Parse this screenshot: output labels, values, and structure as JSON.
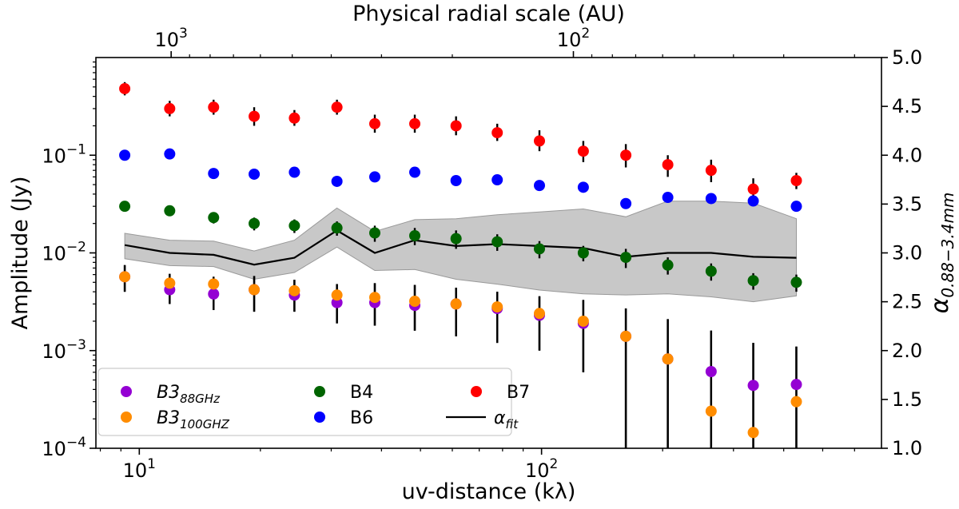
{
  "chart_data": {
    "type": "scatter",
    "title": "",
    "xlabel": "uv-distance (kλ)",
    "ylabel": "Amplitude (Jy)",
    "y2label": "α0.88−3.4mm",
    "x2label": "Physical radial scale (AU)",
    "xscale": "log",
    "yscale": "log",
    "xlim": [
      7.8,
      700
    ],
    "ylim": [
      0.0001,
      1.0
    ],
    "y2lim": [
      1.0,
      5.0
    ],
    "x_ticks": [
      {
        "v": 10,
        "b": "10",
        "e": "1"
      },
      {
        "v": 100,
        "b": "10",
        "e": "2"
      }
    ],
    "y_ticks": [
      {
        "v": 0.0001,
        "b": "10",
        "e": "−4"
      },
      {
        "v": 0.001,
        "b": "10",
        "e": "−3"
      },
      {
        "v": 0.01,
        "b": "10",
        "e": "−2"
      },
      {
        "v": 0.1,
        "b": "10",
        "e": "−1"
      }
    ],
    "y2_ticks": [
      "1.0",
      "1.5",
      "2.0",
      "2.5",
      "3.0",
      "3.5",
      "4.0",
      "4.5",
      "5.0"
    ],
    "x2_ticks": [
      {
        "au": 1000,
        "b": "10",
        "e": "3"
      },
      {
        "au": 100,
        "b": "10",
        "e": "2"
      }
    ],
    "x2_au_conversion": 12000,
    "x": [
      9.2,
      11.9,
      15.3,
      19.3,
      24.3,
      31.0,
      38.5,
      48.4,
      61.3,
      77.6,
      98.8,
      127,
      162,
      206,
      264,
      336,
      430
    ],
    "series": [
      {
        "name": "B7",
        "label": "B7",
        "color": "#ff0000",
        "values": [
          0.48,
          0.3,
          0.31,
          0.25,
          0.24,
          0.31,
          0.21,
          0.21,
          0.2,
          0.17,
          0.14,
          0.11,
          0.1,
          0.08,
          0.07,
          0.045,
          0.055
        ],
        "err_lo": [
          0.41,
          0.25,
          0.26,
          0.2,
          0.2,
          0.26,
          0.17,
          0.17,
          0.16,
          0.14,
          0.11,
          0.085,
          0.075,
          0.06,
          0.053,
          0.035,
          0.045
        ],
        "err_hi": [
          0.56,
          0.36,
          0.37,
          0.31,
          0.29,
          0.37,
          0.26,
          0.26,
          0.25,
          0.21,
          0.18,
          0.14,
          0.13,
          0.1,
          0.09,
          0.058,
          0.066
        ]
      },
      {
        "name": "B6",
        "label": "B6",
        "color": "#0000ff",
        "values": [
          0.1,
          0.103,
          0.065,
          0.064,
          0.067,
          0.054,
          0.06,
          0.067,
          0.055,
          0.056,
          0.049,
          0.047,
          0.032,
          0.037,
          0.036,
          0.034,
          0.03
        ],
        "err_lo": [
          0.1,
          0.103,
          0.059,
          0.058,
          0.061,
          0.049,
          0.054,
          0.061,
          0.05,
          0.051,
          0.045,
          0.043,
          0.029,
          0.034,
          0.033,
          0.034,
          0.03
        ],
        "err_hi": [
          0.1,
          0.103,
          0.071,
          0.07,
          0.073,
          0.059,
          0.066,
          0.073,
          0.06,
          0.061,
          0.054,
          0.052,
          0.035,
          0.04,
          0.039,
          0.034,
          0.03
        ]
      },
      {
        "name": "B4",
        "label": "B4",
        "color": "#006400",
        "values": [
          0.03,
          0.027,
          0.023,
          0.02,
          0.019,
          0.018,
          0.016,
          0.015,
          0.014,
          0.013,
          0.011,
          0.01,
          0.009,
          0.0075,
          0.0065,
          0.0052,
          0.005
        ],
        "err_lo": [
          0.028,
          0.024,
          0.02,
          0.017,
          0.016,
          0.015,
          0.013,
          0.012,
          0.011,
          0.0105,
          0.0088,
          0.0082,
          0.007,
          0.006,
          0.0052,
          0.0042,
          0.004
        ],
        "err_hi": [
          0.032,
          0.03,
          0.026,
          0.023,
          0.022,
          0.021,
          0.019,
          0.018,
          0.017,
          0.0155,
          0.0132,
          0.0118,
          0.011,
          0.009,
          0.0078,
          0.0062,
          0.006
        ]
      },
      {
        "name": "B3_88GHz",
        "label": "B3",
        "sub": "88GHz",
        "italic": true,
        "color": "#9400d3",
        "values": [
          0.0057,
          0.0042,
          0.0038,
          0.0042,
          0.0037,
          0.0031,
          0.0031,
          0.0029,
          0.003,
          0.0027,
          0.0023,
          0.0019,
          0.0014,
          0.00082,
          0.00061,
          0.00044,
          0.00045
        ],
        "err_lo": [
          0.004,
          0.003,
          0.0026,
          0.0025,
          0.0025,
          0.0019,
          0.0018,
          0.0016,
          0.0014,
          0.0012,
          0.001,
          0.0006,
          0.0001,
          0.0001,
          0.0001,
          0.0001,
          0.0001
        ],
        "err_hi": [
          0.0075,
          0.0061,
          0.0057,
          0.0058,
          0.0053,
          0.0048,
          0.0049,
          0.0047,
          0.0044,
          0.004,
          0.0036,
          0.0033,
          0.0027,
          0.0021,
          0.0016,
          0.0012,
          0.0011
        ]
      },
      {
        "name": "B3_100GHz",
        "label": "B3",
        "sub": "100GHZ",
        "italic": true,
        "color": "#ff8c00",
        "values": [
          0.0057,
          0.0049,
          0.0048,
          0.0042,
          0.0041,
          0.0037,
          0.0035,
          0.0032,
          0.003,
          0.0028,
          0.0024,
          0.002,
          0.0014,
          0.00082,
          0.00024,
          0.000145,
          0.0003
        ],
        "err_lo": [
          0.004,
          0.003,
          0.0026,
          0.0025,
          0.0025,
          0.0019,
          0.0018,
          0.0016,
          0.0014,
          0.0012,
          0.001,
          0.0006,
          0.0001,
          0.0001,
          0.0001,
          0.0001,
          0.0001
        ],
        "err_hi": [
          0.0075,
          0.0061,
          0.0057,
          0.0058,
          0.0053,
          0.0048,
          0.0049,
          0.0047,
          0.0044,
          0.004,
          0.0036,
          0.0033,
          0.0027,
          0.0021,
          0.0016,
          0.0012,
          0.0011
        ]
      }
    ],
    "alpha_fit": {
      "name": "alpha_fit",
      "label": "α",
      "sub": "fit",
      "color": "#000000",
      "values": [
        3.08,
        3.0,
        2.98,
        2.88,
        2.95,
        3.23,
        3.0,
        3.13,
        3.07,
        3.09,
        3.07,
        3.05,
        2.96,
        3.0,
        3.0,
        2.96,
        2.95
      ],
      "band_lo": [
        2.94,
        2.87,
        2.86,
        2.73,
        2.8,
        3.06,
        2.82,
        2.83,
        2.73,
        2.68,
        2.62,
        2.58,
        2.57,
        2.58,
        2.55,
        2.5,
        2.56
      ],
      "band_hi": [
        3.2,
        3.13,
        3.12,
        3.02,
        3.13,
        3.46,
        3.22,
        3.34,
        3.35,
        3.39,
        3.42,
        3.45,
        3.37,
        3.53,
        3.53,
        3.51,
        3.35
      ],
      "band_color": "#c8c8c8"
    },
    "legend": {
      "placement": "lower-left",
      "order": [
        "B3_88GHz",
        "B4",
        "B7",
        "B3_100GHz",
        "B6",
        "alpha_fit"
      ]
    }
  }
}
